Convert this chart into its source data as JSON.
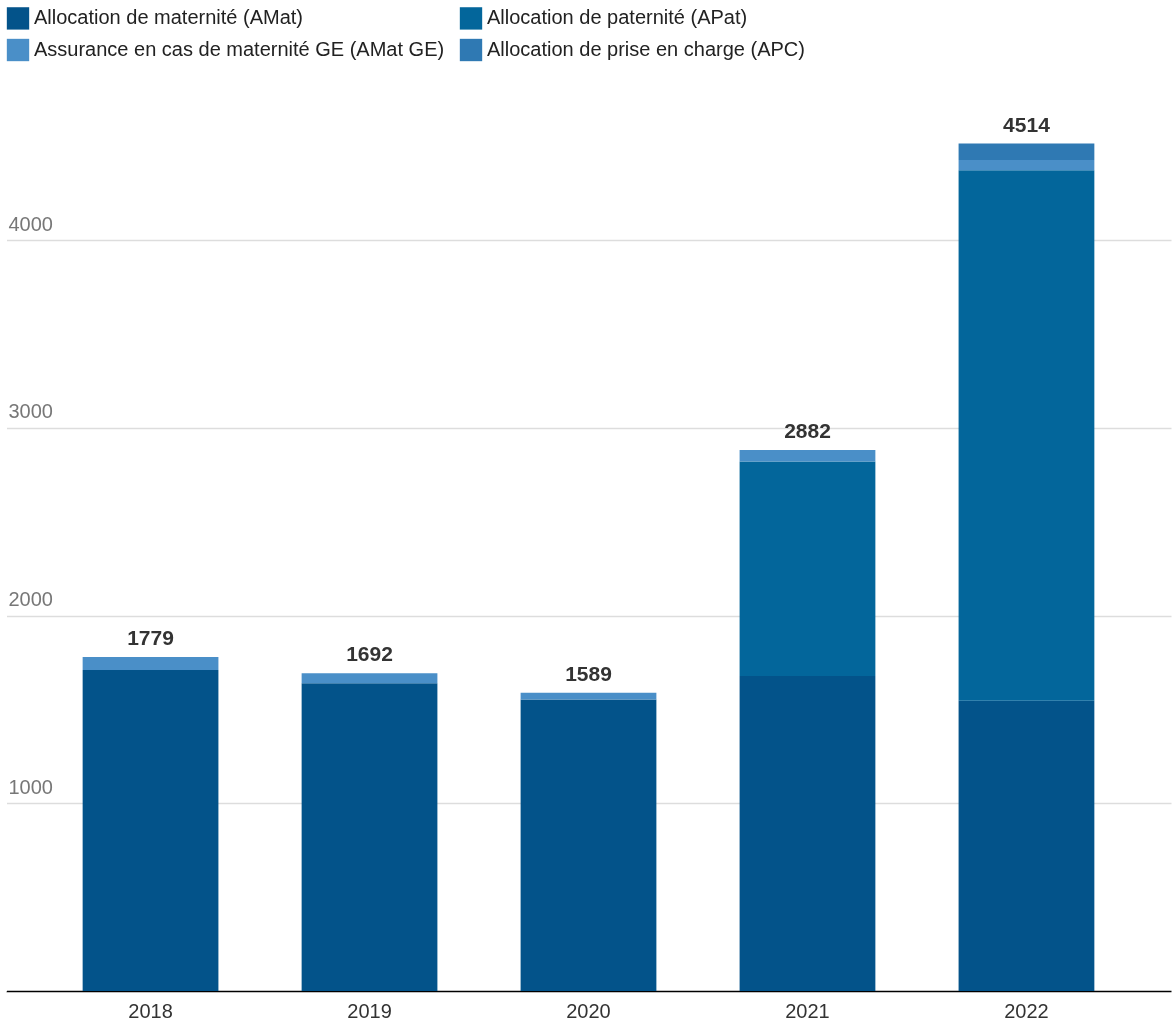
{
  "chart_data": {
    "type": "bar",
    "stacked": true,
    "categories": [
      "2018",
      "2019",
      "2020",
      "2021",
      "2022"
    ],
    "series": [
      {
        "name": "Allocation de maternité (AMat)",
        "color": "#03538a",
        "values": [
          1710,
          1639,
          1552,
          1678,
          1546
        ]
      },
      {
        "name": "Allocation de paternité (APat)",
        "color": "#03669b",
        "values": [
          0,
          0,
          0,
          1142,
          2826
        ]
      },
      {
        "name": "Assurance en cas de maternité GE (AMat GE)",
        "color": "#4a8fc8",
        "values": [
          69,
          53,
          37,
          62,
          54
        ]
      },
      {
        "name": "Allocation de prise en charge (APC)",
        "color": "#2f79b3",
        "values": [
          0,
          0,
          0,
          0,
          88
        ]
      }
    ],
    "totals": [
      "1779",
      "1692",
      "1589",
      "2882",
      "4514"
    ],
    "ylim": [
      0,
      4650
    ],
    "yticks": [
      1000,
      2000,
      3000,
      4000
    ],
    "grid": "y",
    "legend": "top left"
  }
}
